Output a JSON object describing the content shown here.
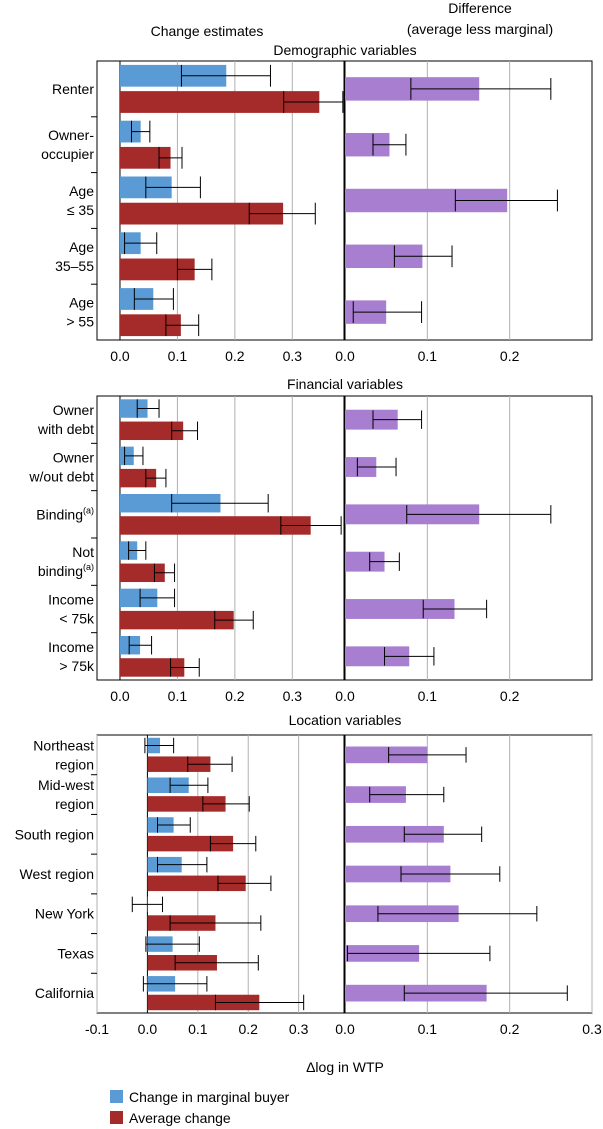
{
  "chart_data": {
    "type": "bar",
    "header": {
      "left_title": "Change estimates",
      "right_title_line1": "Difference",
      "right_title_line2": "(average less marginal)"
    },
    "xlabel": "Δlog in WTP",
    "legend": [
      {
        "name": "Change in marginal buyer",
        "color": "#5b9bd5"
      },
      {
        "name": "Average change",
        "color": "#a52a2a"
      }
    ],
    "difference_color": "#a77ed0",
    "panels": [
      {
        "title": "Demographic  variables",
        "left_range": [
          -0.04,
          0.39
        ],
        "right_range": [
          0,
          0.3
        ],
        "left_ticks": [
          "0.0",
          "0.1",
          "0.2",
          "0.3"
        ],
        "right_ticks": [
          "0.0",
          "0.1",
          "0.2"
        ],
        "groups": [
          {
            "label_lines": [
              "Renter"
            ],
            "marginal": {
              "v": 0.185,
              "lo": 0.107,
              "hi": 0.262
            },
            "average": {
              "v": 0.347,
              "lo": 0.285,
              "hi": 0.388
            },
            "difference": {
              "v": 0.163,
              "lo": 0.08,
              "hi": 0.25
            }
          },
          {
            "label_lines": [
              "Owner-",
              "occupier"
            ],
            "marginal": {
              "v": 0.036,
              "lo": 0.02,
              "hi": 0.052
            },
            "average": {
              "v": 0.088,
              "lo": 0.068,
              "hi": 0.108
            },
            "difference": {
              "v": 0.054,
              "lo": 0.034,
              "hi": 0.074
            }
          },
          {
            "label_lines": [
              "Age",
              "≤ 35"
            ],
            "marginal": {
              "v": 0.09,
              "lo": 0.045,
              "hi": 0.14
            },
            "average": {
              "v": 0.284,
              "lo": 0.225,
              "hi": 0.34
            },
            "difference": {
              "v": 0.197,
              "lo": 0.134,
              "hi": 0.258
            }
          },
          {
            "label_lines": [
              "Age",
              "35–55"
            ],
            "marginal": {
              "v": 0.036,
              "lo": 0.008,
              "hi": 0.064
            },
            "average": {
              "v": 0.13,
              "lo": 0.1,
              "hi": 0.16
            },
            "difference": {
              "v": 0.094,
              "lo": 0.06,
              "hi": 0.13
            }
          },
          {
            "label_lines": [
              "Age",
              "> 55"
            ],
            "marginal": {
              "v": 0.058,
              "lo": 0.025,
              "hi": 0.093
            },
            "average": {
              "v": 0.106,
              "lo": 0.08,
              "hi": 0.137
            },
            "difference": {
              "v": 0.05,
              "lo": 0.01,
              "hi": 0.093
            }
          }
        ]
      },
      {
        "title": "Financial  variables",
        "left_range": [
          -0.04,
          0.39
        ],
        "right_range": [
          0,
          0.3
        ],
        "left_ticks": [
          "0.0",
          "0.1",
          "0.2",
          "0.3"
        ],
        "right_ticks": [
          "0.0",
          "0.1",
          "0.2"
        ],
        "groups": [
          {
            "label_lines": [
              "Owner",
              "with debt"
            ],
            "marginal": {
              "v": 0.048,
              "lo": 0.03,
              "hi": 0.068
            },
            "average": {
              "v": 0.11,
              "lo": 0.09,
              "hi": 0.135
            },
            "difference": {
              "v": 0.064,
              "lo": 0.034,
              "hi": 0.093
            }
          },
          {
            "label_lines": [
              "Owner",
              "w/out debt"
            ],
            "marginal": {
              "v": 0.024,
              "lo": 0.008,
              "hi": 0.04
            },
            "average": {
              "v": 0.063,
              "lo": 0.045,
              "hi": 0.08
            },
            "difference": {
              "v": 0.038,
              "lo": 0.015,
              "hi": 0.062
            }
          },
          {
            "label_lines": [
              "Binding(a)"
            ],
            "marginal": {
              "v": 0.175,
              "lo": 0.09,
              "hi": 0.258
            },
            "average": {
              "v": 0.332,
              "lo": 0.28,
              "hi": 0.385
            },
            "difference": {
              "v": 0.163,
              "lo": 0.075,
              "hi": 0.25
            }
          },
          {
            "label_lines": [
              "Not",
              "binding(a)"
            ],
            "marginal": {
              "v": 0.03,
              "lo": 0.015,
              "hi": 0.045
            },
            "average": {
              "v": 0.078,
              "lo": 0.06,
              "hi": 0.095
            },
            "difference": {
              "v": 0.048,
              "lo": 0.03,
              "hi": 0.066
            }
          },
          {
            "label_lines": [
              "Income",
              "< 75k"
            ],
            "marginal": {
              "v": 0.065,
              "lo": 0.035,
              "hi": 0.095
            },
            "average": {
              "v": 0.198,
              "lo": 0.165,
              "hi": 0.232
            },
            "difference": {
              "v": 0.133,
              "lo": 0.095,
              "hi": 0.172
            }
          },
          {
            "label_lines": [
              "Income",
              "> 75k"
            ],
            "marginal": {
              "v": 0.035,
              "lo": 0.016,
              "hi": 0.055
            },
            "average": {
              "v": 0.112,
              "lo": 0.088,
              "hi": 0.138
            },
            "difference": {
              "v": 0.078,
              "lo": 0.048,
              "hi": 0.108
            }
          }
        ]
      },
      {
        "title": "Location  variables",
        "left_range": [
          -0.1,
          0.39
        ],
        "right_range": [
          0,
          0.3
        ],
        "left_ticks": [
          "-0.1",
          "0.0",
          "0.1",
          "0.2",
          "0.3"
        ],
        "right_ticks": [
          "0.0",
          "0.1",
          "0.2",
          "0.3"
        ],
        "groups": [
          {
            "label_lines": [
              "Northeast",
              "region"
            ],
            "marginal": {
              "v": 0.025,
              "lo": -0.005,
              "hi": 0.052
            },
            "average": {
              "v": 0.125,
              "lo": 0.08,
              "hi": 0.168
            },
            "difference": {
              "v": 0.1,
              "lo": 0.053,
              "hi": 0.147
            }
          },
          {
            "label_lines": [
              "Mid-west",
              "region"
            ],
            "marginal": {
              "v": 0.082,
              "lo": 0.045,
              "hi": 0.12
            },
            "average": {
              "v": 0.155,
              "lo": 0.11,
              "hi": 0.202
            },
            "difference": {
              "v": 0.074,
              "lo": 0.03,
              "hi": 0.12
            }
          },
          {
            "label_lines": [
              "South region"
            ],
            "marginal": {
              "v": 0.052,
              "lo": 0.02,
              "hi": 0.085
            },
            "average": {
              "v": 0.17,
              "lo": 0.125,
              "hi": 0.215
            },
            "difference": {
              "v": 0.12,
              "lo": 0.072,
              "hi": 0.166
            }
          },
          {
            "label_lines": [
              "West region"
            ],
            "marginal": {
              "v": 0.068,
              "lo": 0.02,
              "hi": 0.118
            },
            "average": {
              "v": 0.195,
              "lo": 0.14,
              "hi": 0.245
            },
            "difference": {
              "v": 0.128,
              "lo": 0.068,
              "hi": 0.188
            }
          },
          {
            "label_lines": [
              "New York"
            ],
            "marginal": {
              "v": 0.0,
              "lo": -0.03,
              "hi": 0.03
            },
            "average": {
              "v": 0.135,
              "lo": 0.045,
              "hi": 0.225
            },
            "difference": {
              "v": 0.138,
              "lo": 0.04,
              "hi": 0.233
            }
          },
          {
            "label_lines": [
              "Texas"
            ],
            "marginal": {
              "v": 0.05,
              "lo": -0.003,
              "hi": 0.103
            },
            "average": {
              "v": 0.138,
              "lo": 0.055,
              "hi": 0.22
            },
            "difference": {
              "v": 0.09,
              "lo": 0.003,
              "hi": 0.176
            }
          },
          {
            "label_lines": [
              "California"
            ],
            "marginal": {
              "v": 0.055,
              "lo": -0.008,
              "hi": 0.118
            },
            "average": {
              "v": 0.222,
              "lo": 0.135,
              "hi": 0.31
            },
            "difference": {
              "v": 0.172,
              "lo": 0.072,
              "hi": 0.27
            }
          }
        ]
      }
    ]
  }
}
